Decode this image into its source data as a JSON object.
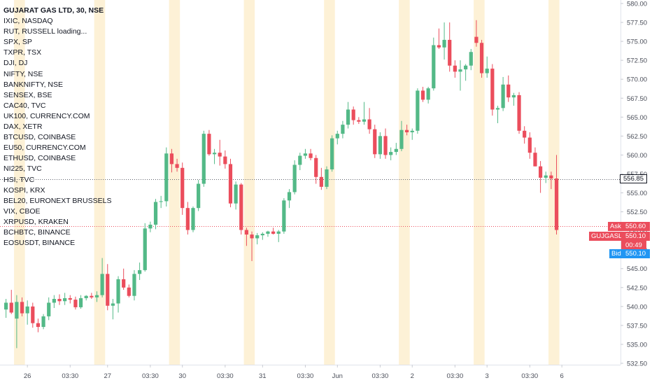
{
  "legend": {
    "main": "GUJARAT GAS LTD, 30, NSE",
    "symbols": [
      "IXIC, NASDAQ",
      "RUT, RUSSELL loading...",
      "SPX, SP",
      "TXPR, TSX",
      "DJI, DJ",
      "NIFTY, NSE",
      "BANKNIFTY, NSE",
      "SENSEX, BSE",
      "CAC40, TVC",
      "UK100, CURRENCY.COM",
      "DAX, XETR",
      "BTCUSD, COINBASE",
      "EU50, CURRENCY.COM",
      "ETHUSD, COINBASE",
      "NI225, TVC",
      "HSI, TVC",
      "KOSPI, KRX",
      "BEL20, EURONEXT BRUSSELS",
      "VIX, CBOE",
      "XRPUSD, KRAKEN",
      "BCHBTC, BINANCE",
      "EOSUSDT, BINANCE"
    ]
  },
  "tags": {
    "hline": "556.85",
    "ask_label": "Ask",
    "ask_value": "550.60",
    "last_value": "550.10",
    "symbol": "GUJGASLTD",
    "countdown": "00:49",
    "bid_label": "Bid",
    "bid_value": "550.10"
  },
  "colors": {
    "up": "#53b987",
    "down": "#eb4d5c",
    "session": "#fdf1d6",
    "bid": "#2196f3",
    "grid": "#f0f3fa"
  },
  "chart_data": {
    "type": "candlestick",
    "yaxis": {
      "min": 532.5,
      "max": 580.0,
      "ticks": [
        "532.50",
        "535.00",
        "537.50",
        "540.00",
        "542.50",
        "545.00",
        "547.50",
        "550.00",
        "552.50",
        "555.00",
        "557.50",
        "560.00",
        "562.50",
        "565.00",
        "567.50",
        "570.00",
        "572.50",
        "575.00",
        "577.50",
        "580.00"
      ]
    },
    "xaxis": {
      "labels": [
        "26",
        "03:30",
        "27",
        "03:30",
        "30",
        "03:30",
        "31",
        "03:30",
        "Jun",
        "03:30",
        "2",
        "03:30",
        "3",
        "03:30",
        "6"
      ],
      "label_at_bar": [
        4,
        12,
        19,
        27,
        33,
        41,
        48,
        56,
        62,
        70,
        76,
        84,
        90,
        98,
        104
      ]
    },
    "horizontal_lines": [
      556.85,
      550.6
    ],
    "session_bars": [
      2,
      3,
      17,
      18,
      31,
      32,
      45,
      46,
      60,
      61,
      74,
      75,
      88,
      89,
      102,
      103
    ],
    "candles": [
      {
        "o": 539.6,
        "h": 541.0,
        "l": 538.5,
        "c": 540.5
      },
      {
        "o": 540.5,
        "h": 542.2,
        "l": 539.0,
        "c": 539.2
      },
      {
        "o": 538.4,
        "h": 541.5,
        "l": 534.5,
        "c": 540.6
      },
      {
        "o": 540.6,
        "h": 541.2,
        "l": 538.7,
        "c": 539.1
      },
      {
        "o": 539.1,
        "h": 540.8,
        "l": 537.6,
        "c": 540.0
      },
      {
        "o": 540.0,
        "h": 540.5,
        "l": 537.2,
        "c": 537.8
      },
      {
        "o": 537.8,
        "h": 538.4,
        "l": 536.6,
        "c": 537.3
      },
      {
        "o": 537.3,
        "h": 539.0,
        "l": 537.0,
        "c": 538.7
      },
      {
        "o": 538.7,
        "h": 541.2,
        "l": 538.2,
        "c": 540.5
      },
      {
        "o": 540.5,
        "h": 541.5,
        "l": 539.8,
        "c": 541.0
      },
      {
        "o": 541.0,
        "h": 541.6,
        "l": 540.2,
        "c": 540.7
      },
      {
        "o": 540.7,
        "h": 541.8,
        "l": 540.2,
        "c": 541.1
      },
      {
        "o": 541.1,
        "h": 541.5,
        "l": 540.4,
        "c": 540.9
      },
      {
        "o": 540.9,
        "h": 541.3,
        "l": 539.6,
        "c": 539.9
      },
      {
        "o": 539.9,
        "h": 541.5,
        "l": 539.7,
        "c": 541.1
      },
      {
        "o": 541.1,
        "h": 541.5,
        "l": 540.8,
        "c": 541.4
      },
      {
        "o": 541.4,
        "h": 541.8,
        "l": 541.0,
        "c": 541.2
      },
      {
        "o": 541.2,
        "h": 542.0,
        "l": 540.6,
        "c": 541.5
      },
      {
        "o": 541.5,
        "h": 546.4,
        "l": 541.2,
        "c": 544.3
      },
      {
        "o": 544.3,
        "h": 545.6,
        "l": 539.5,
        "c": 540.1
      },
      {
        "o": 540.1,
        "h": 541.0,
        "l": 538.3,
        "c": 540.4
      },
      {
        "o": 540.4,
        "h": 544.0,
        "l": 539.2,
        "c": 543.6
      },
      {
        "o": 543.6,
        "h": 545.0,
        "l": 542.2,
        "c": 542.5
      },
      {
        "o": 542.5,
        "h": 542.9,
        "l": 541.2,
        "c": 541.4
      },
      {
        "o": 541.4,
        "h": 544.8,
        "l": 540.8,
        "c": 544.3
      },
      {
        "o": 544.3,
        "h": 545.8,
        "l": 543.5,
        "c": 544.8
      },
      {
        "o": 544.8,
        "h": 551.0,
        "l": 544.6,
        "c": 550.3
      },
      {
        "o": 550.3,
        "h": 551.2,
        "l": 549.8,
        "c": 550.8
      },
      {
        "o": 550.8,
        "h": 554.2,
        "l": 550.2,
        "c": 553.8
      },
      {
        "o": 553.8,
        "h": 554.6,
        "l": 553.0,
        "c": 553.9
      },
      {
        "o": 553.9,
        "h": 561.0,
        "l": 553.2,
        "c": 560.2
      },
      {
        "o": 560.2,
        "h": 560.8,
        "l": 557.7,
        "c": 558.8
      },
      {
        "o": 558.8,
        "h": 559.5,
        "l": 557.8,
        "c": 558.3
      },
      {
        "o": 558.3,
        "h": 559.0,
        "l": 552.1,
        "c": 553.0
      },
      {
        "o": 553.0,
        "h": 553.8,
        "l": 549.5,
        "c": 550.1
      },
      {
        "o": 550.1,
        "h": 553.2,
        "l": 549.8,
        "c": 553.0
      },
      {
        "o": 553.0,
        "h": 556.7,
        "l": 552.6,
        "c": 556.2
      },
      {
        "o": 556.2,
        "h": 563.2,
        "l": 555.8,
        "c": 562.8
      },
      {
        "o": 562.8,
        "h": 563.3,
        "l": 559.9,
        "c": 560.1
      },
      {
        "o": 560.1,
        "h": 560.8,
        "l": 558.8,
        "c": 560.3
      },
      {
        "o": 560.3,
        "h": 562.0,
        "l": 558.6,
        "c": 559.8
      },
      {
        "o": 559.8,
        "h": 560.6,
        "l": 558.2,
        "c": 558.8
      },
      {
        "o": 558.8,
        "h": 559.5,
        "l": 553.1,
        "c": 553.6
      },
      {
        "o": 553.6,
        "h": 556.5,
        "l": 552.8,
        "c": 556.1
      },
      {
        "o": 556.1,
        "h": 556.3,
        "l": 549.5,
        "c": 550.1
      },
      {
        "o": 550.1,
        "h": 550.4,
        "l": 548.0,
        "c": 549.5
      },
      {
        "o": 549.5,
        "h": 549.9,
        "l": 546.0,
        "c": 549.0
      },
      {
        "o": 549.0,
        "h": 549.7,
        "l": 548.2,
        "c": 549.4
      },
      {
        "o": 549.4,
        "h": 549.8,
        "l": 548.8,
        "c": 549.6
      },
      {
        "o": 549.6,
        "h": 550.0,
        "l": 549.2,
        "c": 549.9
      },
      {
        "o": 549.9,
        "h": 550.4,
        "l": 549.5,
        "c": 549.6
      },
      {
        "o": 549.6,
        "h": 550.1,
        "l": 548.5,
        "c": 549.9
      },
      {
        "o": 549.9,
        "h": 554.3,
        "l": 549.6,
        "c": 554.0
      },
      {
        "o": 554.0,
        "h": 555.5,
        "l": 553.0,
        "c": 555.1
      },
      {
        "o": 555.1,
        "h": 559.3,
        "l": 554.8,
        "c": 558.7
      },
      {
        "o": 558.7,
        "h": 560.3,
        "l": 558.0,
        "c": 559.9
      },
      {
        "o": 559.9,
        "h": 560.8,
        "l": 559.5,
        "c": 560.2
      },
      {
        "o": 560.2,
        "h": 560.8,
        "l": 559.3,
        "c": 559.6
      },
      {
        "o": 559.6,
        "h": 560.0,
        "l": 556.2,
        "c": 557.1
      },
      {
        "o": 557.1,
        "h": 558.3,
        "l": 555.4,
        "c": 555.8
      },
      {
        "o": 555.8,
        "h": 558.5,
        "l": 555.5,
        "c": 558.1
      },
      {
        "o": 558.1,
        "h": 562.6,
        "l": 557.8,
        "c": 562.2
      },
      {
        "o": 562.2,
        "h": 563.2,
        "l": 561.4,
        "c": 562.8
      },
      {
        "o": 562.8,
        "h": 564.5,
        "l": 562.2,
        "c": 564.0
      },
      {
        "o": 564.0,
        "h": 567.0,
        "l": 563.5,
        "c": 566.0
      },
      {
        "o": 566.0,
        "h": 566.4,
        "l": 564.0,
        "c": 564.6
      },
      {
        "o": 564.6,
        "h": 565.0,
        "l": 564.1,
        "c": 564.4
      },
      {
        "o": 564.4,
        "h": 567.0,
        "l": 564.0,
        "c": 564.7
      },
      {
        "o": 564.7,
        "h": 566.2,
        "l": 562.8,
        "c": 563.4
      },
      {
        "o": 563.4,
        "h": 564.0,
        "l": 559.6,
        "c": 560.1
      },
      {
        "o": 560.1,
        "h": 563.0,
        "l": 559.5,
        "c": 562.5
      },
      {
        "o": 562.5,
        "h": 563.5,
        "l": 559.5,
        "c": 560.0
      },
      {
        "o": 560.0,
        "h": 561.0,
        "l": 559.3,
        "c": 560.4
      },
      {
        "o": 560.4,
        "h": 561.6,
        "l": 560.0,
        "c": 560.8
      },
      {
        "o": 560.8,
        "h": 564.5,
        "l": 560.5,
        "c": 563.3
      },
      {
        "o": 563.3,
        "h": 564.0,
        "l": 562.6,
        "c": 563.0
      },
      {
        "o": 563.0,
        "h": 563.5,
        "l": 562.0,
        "c": 563.2
      },
      {
        "o": 563.2,
        "h": 568.8,
        "l": 562.8,
        "c": 568.5
      },
      {
        "o": 568.5,
        "h": 569.0,
        "l": 567.0,
        "c": 567.3
      },
      {
        "o": 567.3,
        "h": 569.0,
        "l": 566.8,
        "c": 568.8
      },
      {
        "o": 568.8,
        "h": 575.5,
        "l": 568.5,
        "c": 574.5
      },
      {
        "o": 574.5,
        "h": 576.7,
        "l": 574.0,
        "c": 574.2
      },
      {
        "o": 574.2,
        "h": 577.5,
        "l": 572.6,
        "c": 575.2
      },
      {
        "o": 575.2,
        "h": 577.5,
        "l": 571.0,
        "c": 571.8
      },
      {
        "o": 571.8,
        "h": 572.5,
        "l": 570.2,
        "c": 571.0
      },
      {
        "o": 571.0,
        "h": 572.5,
        "l": 568.5,
        "c": 571.3
      },
      {
        "o": 571.3,
        "h": 572.0,
        "l": 569.8,
        "c": 571.8
      },
      {
        "o": 571.8,
        "h": 574.0,
        "l": 571.2,
        "c": 573.6
      },
      {
        "o": 575.6,
        "h": 577.8,
        "l": 574.3,
        "c": 574.8
      },
      {
        "o": 574.8,
        "h": 575.2,
        "l": 570.2,
        "c": 570.8
      },
      {
        "o": 570.8,
        "h": 573.0,
        "l": 570.2,
        "c": 571.4
      },
      {
        "o": 571.4,
        "h": 572.0,
        "l": 565.2,
        "c": 566.0
      },
      {
        "o": 566.0,
        "h": 566.5,
        "l": 564.2,
        "c": 566.2
      },
      {
        "o": 566.2,
        "h": 570.3,
        "l": 565.8,
        "c": 569.3
      },
      {
        "o": 569.3,
        "h": 570.5,
        "l": 567.0,
        "c": 567.6
      },
      {
        "o": 567.6,
        "h": 568.2,
        "l": 566.5,
        "c": 567.9
      },
      {
        "o": 567.9,
        "h": 568.3,
        "l": 562.8,
        "c": 563.2
      },
      {
        "o": 563.2,
        "h": 563.8,
        "l": 561.5,
        "c": 562.3
      },
      {
        "o": 562.3,
        "h": 563.0,
        "l": 559.5,
        "c": 560.3
      },
      {
        "o": 560.3,
        "h": 561.0,
        "l": 558.5,
        "c": 558.5
      },
      {
        "o": 558.5,
        "h": 559.2,
        "l": 555.0,
        "c": 557.0
      },
      {
        "o": 557.0,
        "h": 557.8,
        "l": 556.3,
        "c": 557.3
      },
      {
        "o": 557.3,
        "h": 557.8,
        "l": 555.5,
        "c": 556.9
      },
      {
        "o": 556.9,
        "h": 560.0,
        "l": 549.5,
        "c": 550.1
      }
    ]
  }
}
